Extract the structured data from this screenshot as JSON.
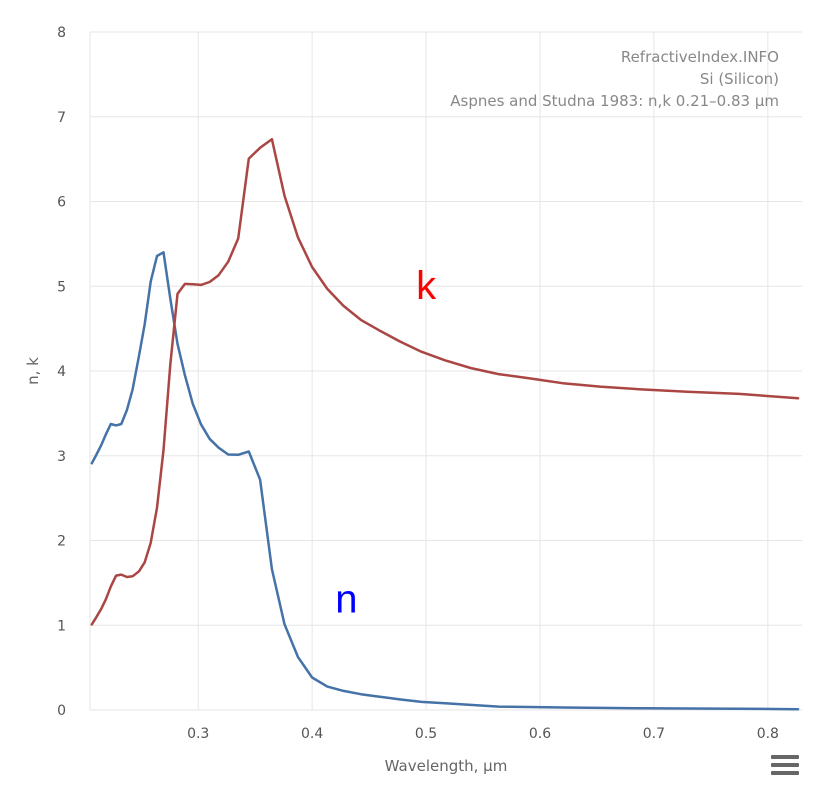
{
  "chart_data": {
    "type": "line",
    "xlabel": "Wavelength, µm",
    "ylabel": "n, k",
    "xlim": [
      0.205,
      0.83
    ],
    "ylim": [
      0,
      8
    ],
    "x_ticks": [
      0.3,
      0.4,
      0.5,
      0.6,
      0.7,
      0.8
    ],
    "x_tick_labels": [
      "0.3",
      "0.4",
      "0.5",
      "0.6",
      "0.7",
      "0.8"
    ],
    "y_ticks": [
      0,
      1,
      2,
      3,
      4,
      5,
      6,
      7,
      8
    ],
    "y_tick_labels": [
      "0",
      "1",
      "2",
      "3",
      "4",
      "5",
      "6",
      "7",
      "8"
    ],
    "grid": true,
    "credits": [
      "RefractiveIndex.INFO",
      "Si (Silicon)",
      "Aspnes and Studna 1983: n,k 0.21–0.83 µm"
    ],
    "series": [
      {
        "name": "n",
        "color": "#4572a7",
        "label_color": "#0000ff",
        "label_at": [
          0.43,
          1.15
        ],
        "x": [
          0.2066,
          0.2107,
          0.2148,
          0.219,
          0.2233,
          0.2279,
          0.2325,
          0.2374,
          0.2424,
          0.248,
          0.253,
          0.2583,
          0.2638,
          0.2695,
          0.2755,
          0.2818,
          0.2883,
          0.2952,
          0.3024,
          0.31,
          0.3179,
          0.3263,
          0.3351,
          0.3444,
          0.3543,
          0.3647,
          0.3757,
          0.3875,
          0.4,
          0.4133,
          0.4275,
          0.4428,
          0.4592,
          0.4769,
          0.4959,
          0.5166,
          0.5391,
          0.5636,
          0.5904,
          0.6199,
          0.6526,
          0.6888,
          0.7293,
          0.7749,
          0.8266
        ],
        "y": [
          2.911,
          3.015,
          3.124,
          3.253,
          3.375,
          3.358,
          3.375,
          3.539,
          3.783,
          4.179,
          4.552,
          5.055,
          5.357,
          5.401,
          4.854,
          4.321,
          3.95,
          3.612,
          3.371,
          3.2,
          3.095,
          3.015,
          3.011,
          3.05,
          2.717,
          1.662,
          1.012,
          0.626,
          0.383,
          0.276,
          0.225,
          0.187,
          0.157,
          0.125,
          0.096,
          0.079,
          0.06,
          0.04,
          0.035,
          0.03,
          0.025,
          0.02,
          0.018,
          0.015,
          0.01
        ]
      },
      {
        "name": "k",
        "color": "#aa4643",
        "label_color": "#ff0000",
        "label_at": [
          0.5,
          4.85
        ],
        "x": [
          0.2066,
          0.2107,
          0.2148,
          0.219,
          0.2233,
          0.2279,
          0.2325,
          0.2374,
          0.2424,
          0.248,
          0.253,
          0.2583,
          0.2638,
          0.2695,
          0.2755,
          0.2818,
          0.2883,
          0.2952,
          0.3024,
          0.31,
          0.3179,
          0.3263,
          0.3351,
          0.3444,
          0.3543,
          0.3647,
          0.3757,
          0.3875,
          0.4,
          0.4133,
          0.4275,
          0.4428,
          0.4592,
          0.4769,
          0.4959,
          0.5166,
          0.5391,
          0.5636,
          0.5904,
          0.6199,
          0.6526,
          0.6888,
          0.7293,
          0.7749,
          0.8266
        ],
        "y": [
          1.01,
          1.099,
          1.193,
          1.307,
          1.456,
          1.586,
          1.598,
          1.569,
          1.578,
          1.636,
          1.743,
          1.972,
          2.387,
          3.066,
          4.076,
          4.91,
          5.028,
          5.023,
          5.016,
          5.05,
          5.13,
          5.29,
          5.564,
          6.506,
          6.634,
          6.735,
          6.068,
          5.578,
          5.227,
          4.969,
          4.768,
          4.603,
          4.477,
          4.349,
          4.228,
          4.126,
          4.035,
          3.964,
          3.914,
          3.856,
          3.816,
          3.783,
          3.754,
          3.73,
          3.678
        ]
      }
    ]
  }
}
